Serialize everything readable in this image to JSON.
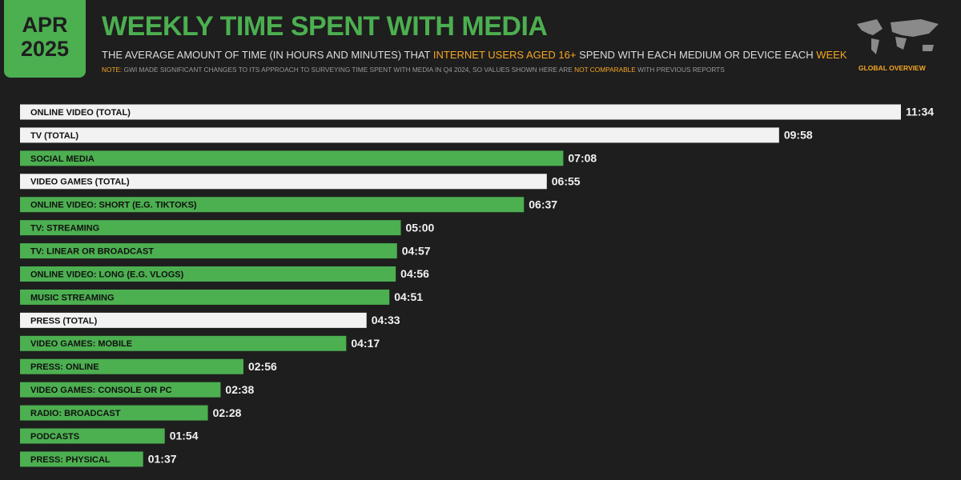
{
  "header": {
    "month": "APR",
    "year": "2025",
    "badge": "GLOBAL OVERVIEW",
    "subtitle": [
      {
        "text": "THE AVERAGE AMOUNT OF TIME (IN HOURS AND MINUTES) THAT ",
        "highlight": false
      },
      {
        "text": "INTERNET USERS AGED 16+",
        "highlight": true
      },
      {
        "text": " SPEND WITH EACH MEDIUM OR DEVICE EACH ",
        "highlight": false
      },
      {
        "text": "WEEK",
        "highlight": true
      }
    ],
    "note": [
      {
        "text": "NOTE:",
        "highlight": true
      },
      {
        "text": " GWI MADE SIGNIFICANT CHANGES TO ITS APPROACH TO SURVEYING TIME SPENT WITH MEDIA IN Q4 2024, SO VALUES SHOWN HERE ARE ",
        "highlight": false
      },
      {
        "text": "NOT COMPARABLE",
        "highlight": true
      },
      {
        "text": " WITH PREVIOUS REPORTS",
        "highlight": false
      }
    ]
  },
  "chart_data": {
    "type": "hbar",
    "title": "WEEKLY TIME SPENT WITH MEDIA",
    "categories": [
      "ONLINE VIDEO (TOTAL)",
      "TV (TOTAL)",
      "SOCIAL MEDIA",
      "VIDEO GAMES (TOTAL)",
      "ONLINE VIDEO: SHORT (E.G. TIKTOKS)",
      "TV: STREAMING",
      "TV: LINEAR OR BROADCAST",
      "ONLINE VIDEO: LONG (E.G. VLOGS)",
      "MUSIC STREAMING",
      "PRESS (TOTAL)",
      "VIDEO GAMES: MOBILE",
      "PRESS: ONLINE",
      "VIDEO GAMES: CONSOLE OR PC",
      "RADIO: BROADCAST",
      "PODCASTS",
      "PRESS: PHYSICAL"
    ],
    "values": [
      694,
      598,
      428,
      415,
      397,
      300,
      297,
      296,
      291,
      273,
      257,
      176,
      158,
      148,
      114,
      97
    ],
    "value_labels": [
      "11:34",
      "09:58",
      "07:08",
      "06:55",
      "06:37",
      "05:00",
      "04:57",
      "04:56",
      "04:51",
      "04:33",
      "04:17",
      "02:56",
      "02:38",
      "02:28",
      "01:54",
      "01:37"
    ],
    "colors": [
      "#f2f2f2",
      "#f2f2f2",
      "#4caf50",
      "#f2f2f2",
      "#4caf50",
      "#4caf50",
      "#4caf50",
      "#4caf50",
      "#4caf50",
      "#f2f2f2",
      "#4caf50",
      "#4caf50",
      "#4caf50",
      "#4caf50",
      "#4caf50",
      "#4caf50"
    ],
    "xlim": [
      0,
      694
    ]
  }
}
